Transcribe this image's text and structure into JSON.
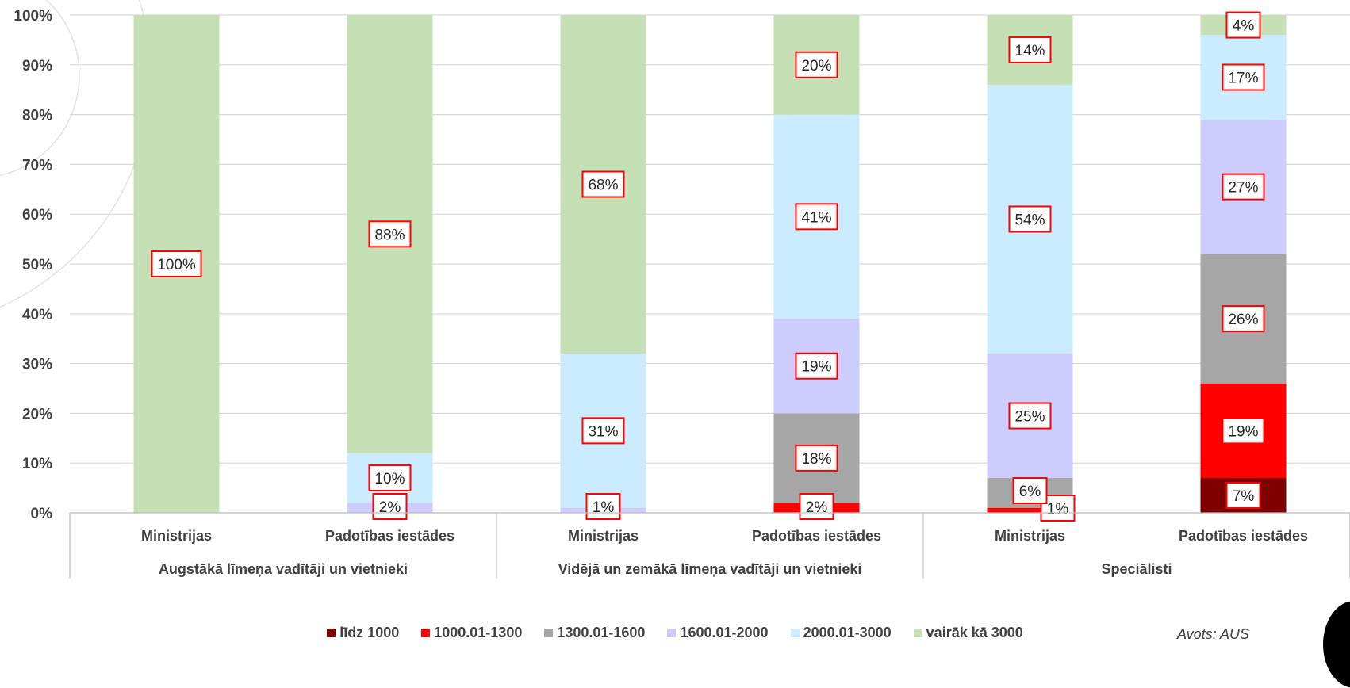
{
  "chart_data": {
    "type": "bar",
    "stacked": true,
    "percent_stacked": true,
    "ylim": [
      0,
      100
    ],
    "yticks": [
      "0%",
      "10%",
      "20%",
      "30%",
      "40%",
      "50%",
      "60%",
      "70%",
      "80%",
      "90%",
      "100%"
    ],
    "grid": true,
    "categories": [
      "Ministrijas",
      "Padotības iestādes",
      "Ministrijas",
      "Padotības iestādes",
      "Ministrijas",
      "Padotības iestādes"
    ],
    "groups": [
      {
        "label": "Augstākā līmeņa vadītāji un vietnieki",
        "span": [
          0,
          1
        ]
      },
      {
        "label": "Vidējā un zemākā līmeņa vadītāji un vietnieki",
        "span": [
          2,
          3
        ]
      },
      {
        "label": "Speciālisti",
        "span": [
          4,
          5
        ]
      }
    ],
    "series": [
      {
        "name": "līdz 1000",
        "color": "#7f0000",
        "values": [
          0,
          0,
          0,
          0,
          0,
          7
        ]
      },
      {
        "name": "1000.01-1300",
        "color": "#ff0000",
        "values": [
          0,
          0,
          0,
          2,
          1,
          19
        ]
      },
      {
        "name": "1300.01-1600",
        "color": "#a6a6a6",
        "values": [
          0,
          0,
          0,
          18,
          6,
          26
        ]
      },
      {
        "name": "1600.01-2000",
        "color": "#ccccff",
        "values": [
          0,
          2,
          1,
          19,
          25,
          27
        ]
      },
      {
        "name": "2000.01-3000",
        "color": "#cbebff",
        "values": [
          0,
          10,
          31,
          41,
          54,
          17
        ]
      },
      {
        "name": "vairāk kā 3000",
        "color": "#c5e0b4",
        "values": [
          100,
          88,
          68,
          20,
          14,
          4
        ]
      }
    ],
    "data_labels": [
      {
        "bar": 0,
        "series": 5,
        "text": "100%"
      },
      {
        "bar": 1,
        "series": 3,
        "text": "2%"
      },
      {
        "bar": 1,
        "series": 4,
        "text": "10%"
      },
      {
        "bar": 1,
        "series": 5,
        "text": "88%"
      },
      {
        "bar": 2,
        "series": 3,
        "text": "1%"
      },
      {
        "bar": 2,
        "series": 4,
        "text": "31%"
      },
      {
        "bar": 2,
        "series": 5,
        "text": "68%"
      },
      {
        "bar": 3,
        "series": 1,
        "text": "2%"
      },
      {
        "bar": 3,
        "series": 2,
        "text": "18%"
      },
      {
        "bar": 3,
        "series": 3,
        "text": "19%"
      },
      {
        "bar": 3,
        "series": 4,
        "text": "41%"
      },
      {
        "bar": 3,
        "series": 5,
        "text": "20%"
      },
      {
        "bar": 4,
        "series": 1,
        "text": "1%"
      },
      {
        "bar": 4,
        "series": 2,
        "text": "6%"
      },
      {
        "bar": 4,
        "series": 3,
        "text": "25%"
      },
      {
        "bar": 4,
        "series": 4,
        "text": "54%"
      },
      {
        "bar": 4,
        "series": 5,
        "text": "14%"
      },
      {
        "bar": 5,
        "series": 0,
        "text": "7%"
      },
      {
        "bar": 5,
        "series": 1,
        "text": "19%"
      },
      {
        "bar": 5,
        "series": 2,
        "text": "26%"
      },
      {
        "bar": 5,
        "series": 3,
        "text": "27%"
      },
      {
        "bar": 5,
        "series": 4,
        "text": "17%"
      },
      {
        "bar": 5,
        "series": 5,
        "text": "4%"
      }
    ],
    "label_box_color": "#ff0000",
    "legend_position": "bottom"
  },
  "source": "Avots: AUS"
}
